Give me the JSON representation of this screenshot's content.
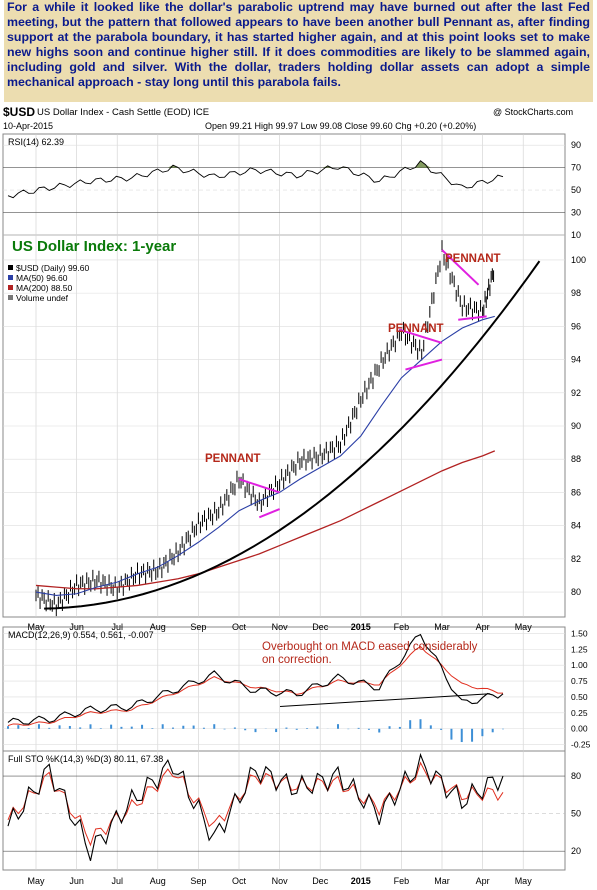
{
  "commentary": "For a while it looked like the dollar's parabolic uptrend may have burned out after the last Fed meeting, but the pattern that followed appears to have been another bull Pennant as, after finding support at the parabola boundary, it has started higher again, and at this point looks set to make new highs soon and continue higher still. If it does commodities are likely to be slammed again, including gold and silver. With the dollar, traders holding dollar assets can adopt a simple mechanical approach - stay long until this parabola fails.",
  "header": {
    "symbol": "$USD",
    "name": "US Dollar Index - Cash Settle (EOD) ICE",
    "watermark": "@ StockCharts.com",
    "date": "10-Apr-2015",
    "ohlc": "Open 99.21  High 99.97  Low 99.08  Close 99.60  Chg +0.20 (+0.20%)"
  },
  "colors": {
    "price": "#000000",
    "ma50": "#2b3fa6",
    "ma200": "#b22222",
    "pennant": "#e020e0",
    "rsi_fill": "#5a7a2a",
    "macd_hist": "#3d8fd6",
    "signal": "#e03020",
    "annotation_red": "#b5281a",
    "title_green": "#0a7a0a"
  },
  "chart_data": [
    {
      "type": "line",
      "title": "RSI(14) 62.39",
      "ylim": [
        10,
        100
      ],
      "y_ticks": [
        90,
        70,
        50,
        30,
        10
      ],
      "x": [
        "May",
        "Jun",
        "Jul",
        "Aug",
        "Sep",
        "Oct",
        "Nov",
        "Dec",
        "2015",
        "Feb",
        "Mar",
        "Apr",
        "May"
      ],
      "series": [
        {
          "name": "RSI(14)",
          "values": [
            45,
            52,
            58,
            61,
            70,
            62,
            68,
            63,
            71,
            58,
            74,
            52,
            62
          ]
        }
      ]
    },
    {
      "type": "line",
      "title": "US Dollar Index: 1-year",
      "ylim": [
        78.5,
        101.5
      ],
      "y_ticks": [
        100,
        98,
        96,
        94,
        92,
        90,
        88,
        86,
        84,
        82,
        80
      ],
      "x_labels": [
        "May",
        "Jun",
        "Jul",
        "Aug",
        "Sep",
        "Oct",
        "Nov",
        "Dec",
        "2015",
        "Feb",
        "Mar",
        "Apr",
        "May"
      ],
      "legend": [
        {
          "label": "$USD (Daily) 99.60",
          "marker": "bar"
        },
        {
          "label": "MA(50) 96.60",
          "marker": "line"
        },
        {
          "label": "MA(200) 88.50",
          "marker": "line"
        },
        {
          "label": "Volume undef",
          "marker": "volume"
        }
      ],
      "annotations": [
        "PENNANT",
        "PENNANT",
        "PENNANT"
      ],
      "x": [
        0,
        0.5,
        1,
        1.5,
        2,
        2.5,
        3,
        3.5,
        4,
        4.5,
        5,
        5.5,
        6,
        6.5,
        7,
        7.5,
        8,
        8.5,
        9,
        9.5,
        10,
        10.5,
        11,
        11.3
      ],
      "series": [
        {
          "name": "$USD",
          "values": [
            79.8,
            79.2,
            80.4,
            80.7,
            80.2,
            81.1,
            81.3,
            82.4,
            84.1,
            84.9,
            86.8,
            85.3,
            86.6,
            87.9,
            88.2,
            88.9,
            91.6,
            93.8,
            95.7,
            94.4,
            100.5,
            97.2,
            96.9,
            99.6
          ]
        },
        {
          "name": "MA(50)",
          "values": [
            80.0,
            79.8,
            79.9,
            80.3,
            80.6,
            81.1,
            81.5,
            82.2,
            83.0,
            83.9,
            84.9,
            85.5,
            86.0,
            86.8,
            87.5,
            88.2,
            89.4,
            91.2,
            92.9,
            94.0,
            95.1,
            95.9,
            96.4,
            96.6
          ]
        },
        {
          "name": "MA(200)",
          "values": [
            80.4,
            80.3,
            80.2,
            80.2,
            80.3,
            80.4,
            80.6,
            80.8,
            81.1,
            81.5,
            81.9,
            82.3,
            82.8,
            83.3,
            83.8,
            84.3,
            84.9,
            85.5,
            86.1,
            86.7,
            87.3,
            87.8,
            88.2,
            88.5
          ]
        }
      ]
    },
    {
      "type": "line",
      "title": "MACD(12,26,9) 0.554, 0.561, -0.007",
      "annotation": "Overbought on MACD eased considerably on correction.",
      "ylim": [
        -0.35,
        1.6
      ],
      "y_ticks": [
        1.5,
        1.25,
        1.0,
        0.75,
        0.5,
        0.25,
        0.0,
        -0.25
      ],
      "series": [
        {
          "name": "MACD",
          "values": [
            0.1,
            0.15,
            0.3,
            0.35,
            0.6,
            0.85,
            0.6,
            0.55,
            0.8,
            0.65,
            1.5,
            0.4,
            0.55
          ]
        },
        {
          "name": "Signal",
          "values": [
            0.05,
            0.1,
            0.25,
            0.3,
            0.55,
            0.8,
            0.65,
            0.55,
            0.75,
            0.7,
            1.3,
            0.7,
            0.56
          ]
        }
      ]
    },
    {
      "type": "line",
      "title": "Full STO %K(14,3) %D(3) 80.11, 67.38",
      "ylim": [
        5,
        100
      ],
      "y_ticks": [
        80,
        50,
        20
      ],
      "x_labels": [
        "May",
        "Jun",
        "Jul",
        "Aug",
        "Sep",
        "Oct",
        "Nov",
        "Dec",
        "2015",
        "Feb",
        "Mar",
        "Apr",
        "May"
      ],
      "series": [
        {
          "name": "%K",
          "values": [
            40,
            85,
            20,
            60,
            90,
            30,
            85,
            70,
            80,
            50,
            90,
            60,
            80
          ]
        },
        {
          "name": "%D",
          "values": [
            45,
            80,
            30,
            55,
            85,
            40,
            80,
            72,
            75,
            55,
            85,
            65,
            67
          ]
        }
      ]
    }
  ]
}
